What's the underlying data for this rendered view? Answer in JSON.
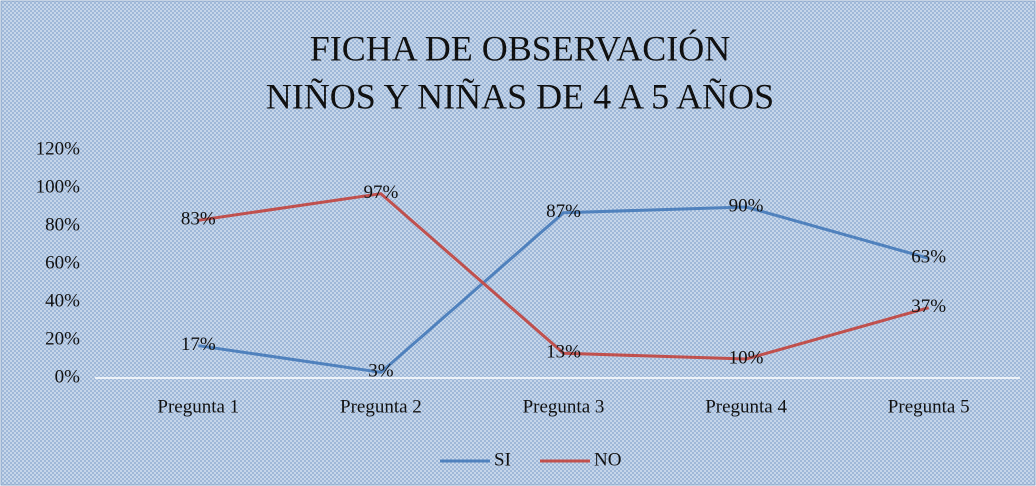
{
  "chart_data": {
    "type": "line",
    "title": [
      "FICHA DE OBSERVACIÓN",
      "NIÑOS Y NIÑAS DE 4 A 5 AÑOS"
    ],
    "categories": [
      "Pregunta 1",
      "Pregunta 2",
      "Pregunta 3",
      "Pregunta 4",
      "Pregunta 5"
    ],
    "series": [
      {
        "name": "SI",
        "color": "#4f81bd",
        "values": [
          17,
          3,
          87,
          90,
          63
        ],
        "value_labels": [
          "17%",
          "3%",
          "87%",
          "90%",
          "63%"
        ]
      },
      {
        "name": "NO",
        "color": "#c0504d",
        "values": [
          83,
          97,
          13,
          10,
          37
        ],
        "value_labels": [
          "83%",
          "97%",
          "13%",
          "10%",
          "37%"
        ]
      }
    ],
    "ylim": [
      0,
      120
    ],
    "yticks": [
      {
        "value": 0,
        "label": "0%"
      },
      {
        "value": 20,
        "label": "20%"
      },
      {
        "value": 40,
        "label": "40%"
      },
      {
        "value": 60,
        "label": "60%"
      },
      {
        "value": 80,
        "label": "80%"
      },
      {
        "value": 100,
        "label": "100%"
      },
      {
        "value": 120,
        "label": "120%"
      }
    ],
    "grid": false,
    "legend": "bottom"
  }
}
